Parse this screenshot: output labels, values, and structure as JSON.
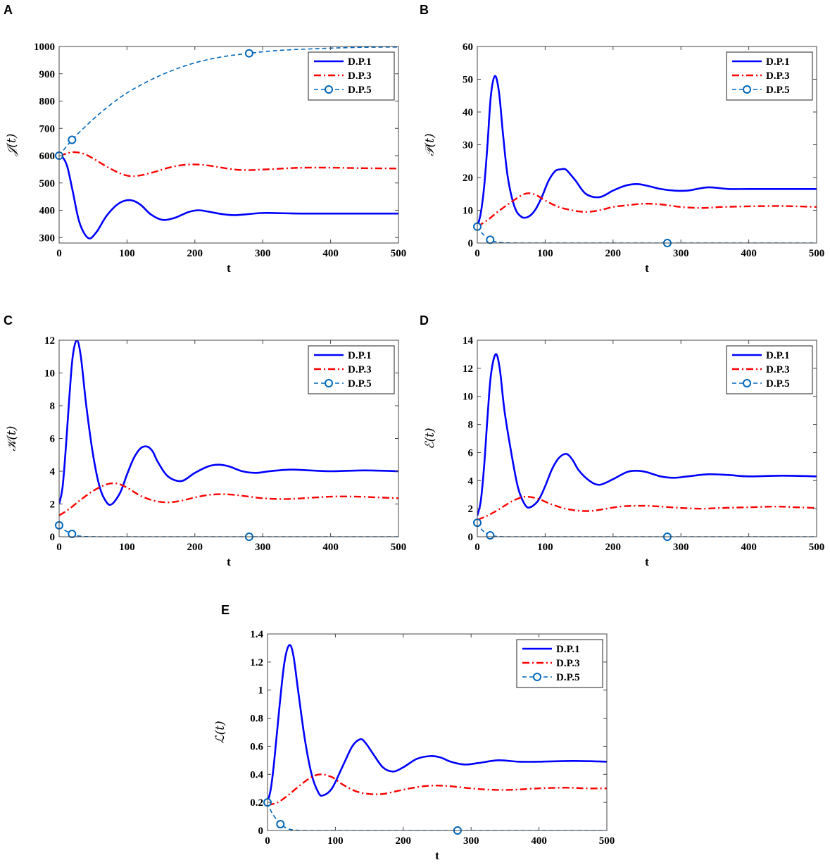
{
  "chart_data": [
    {
      "panel": "A",
      "type": "line",
      "xlabel": "t",
      "ylabel": "𝒥(t)",
      "xlim": [
        0,
        500
      ],
      "ylim": [
        280,
        1000
      ],
      "xticks": [
        0,
        100,
        200,
        300,
        400,
        500
      ],
      "yticks": [
        300,
        400,
        500,
        600,
        700,
        800,
        900,
        1000
      ],
      "legend_position": "top-right",
      "series": [
        {
          "name": "D.P.1",
          "color": "#0000ff",
          "style": "solid",
          "x": [
            0,
            5,
            12,
            20,
            30,
            43,
            55,
            70,
            88,
            105,
            120,
            135,
            152,
            170,
            190,
            205,
            220,
            240,
            258,
            275,
            300,
            330,
            360,
            400,
            450,
            500
          ],
          "y": [
            600,
            595,
            560,
            470,
            355,
            298,
            320,
            380,
            425,
            437,
            420,
            385,
            365,
            372,
            393,
            400,
            395,
            386,
            382,
            385,
            390,
            389,
            388,
            388,
            388,
            388
          ]
        },
        {
          "name": "D.P.3",
          "color": "#ff0000",
          "style": "dashdot",
          "x": [
            0,
            10,
            20,
            35,
            50,
            70,
            90,
            105,
            120,
            140,
            160,
            180,
            200,
            220,
            240,
            260,
            280,
            300,
            330,
            360,
            400,
            450,
            500
          ],
          "y": [
            600,
            607,
            613,
            608,
            590,
            560,
            535,
            525,
            528,
            540,
            555,
            565,
            568,
            564,
            556,
            549,
            547,
            549,
            553,
            556,
            556,
            554,
            553
          ]
        },
        {
          "name": "D.P.5",
          "color": "#0066bb",
          "style": "dashed",
          "marker": "circle",
          "marker_x": [
            0,
            19,
            280
          ],
          "x": [
            0,
            19,
            40,
            60,
            80,
            100,
            125,
            150,
            175,
            200,
            225,
            250,
            280,
            310,
            340,
            370,
            400,
            450,
            500
          ],
          "y": [
            600,
            658,
            710,
            755,
            795,
            830,
            865,
            895,
            920,
            940,
            955,
            966,
            975,
            983,
            988,
            991,
            994,
            997,
            998
          ]
        }
      ]
    },
    {
      "panel": "B",
      "type": "line",
      "xlabel": "t",
      "ylabel": "𝒫(t)",
      "xlim": [
        0,
        500
      ],
      "ylim": [
        0,
        60
      ],
      "xticks": [
        0,
        100,
        200,
        300,
        400,
        500
      ],
      "yticks": [
        0,
        10,
        20,
        30,
        40,
        50,
        60
      ],
      "legend_position": "top-right",
      "series": [
        {
          "name": "D.P.1",
          "color": "#0000ff",
          "style": "solid",
          "x": [
            0,
            5,
            10,
            15,
            20,
            26,
            32,
            38,
            45,
            55,
            65,
            75,
            85,
            95,
            105,
            115,
            123,
            130,
            137,
            145,
            160,
            180,
            200,
            218,
            235,
            250,
            270,
            290,
            310,
            340,
            370,
            400,
            450,
            500
          ],
          "y": [
            5,
            9,
            17,
            30,
            45,
            51,
            46,
            33,
            20,
            11,
            8,
            8,
            10,
            14,
            19,
            22,
            22.5,
            22.5,
            21,
            19,
            15,
            14,
            16,
            17.5,
            18,
            17.5,
            16.5,
            16,
            16,
            17,
            16.5,
            16.5,
            16.5,
            16.5
          ]
        },
        {
          "name": "D.P.3",
          "color": "#ff0000",
          "style": "dashdot",
          "x": [
            0,
            15,
            30,
            50,
            70,
            85,
            100,
            120,
            140,
            160,
            180,
            200,
            220,
            245,
            270,
            300,
            330,
            360,
            400,
            440,
            470,
            500
          ],
          "y": [
            5,
            7,
            9.5,
            12.5,
            15,
            14.8,
            13,
            11,
            10,
            9.5,
            10,
            11,
            11.5,
            12,
            11.8,
            11,
            10.7,
            11,
            11.2,
            11.3,
            11.2,
            11
          ]
        },
        {
          "name": "D.P.5",
          "color": "#0066bb",
          "style": "dashed",
          "marker": "circle",
          "marker_x": [
            0,
            19,
            280
          ],
          "x": [
            0,
            5,
            10,
            15,
            19,
            25,
            30,
            40,
            60,
            100,
            200,
            280,
            350,
            500
          ],
          "y": [
            5,
            3.5,
            2.4,
            1.6,
            1.0,
            0.5,
            0.25,
            0.08,
            0,
            0,
            0,
            0,
            0,
            0
          ]
        }
      ]
    },
    {
      "panel": "C",
      "type": "line",
      "xlabel": "t",
      "ylabel": "𝒦(t)",
      "xlim": [
        0,
        500
      ],
      "ylim": [
        0,
        12
      ],
      "xticks": [
        0,
        100,
        200,
        300,
        400,
        500
      ],
      "yticks": [
        0,
        2,
        4,
        6,
        8,
        10,
        12
      ],
      "legend_position": "top-right",
      "series": [
        {
          "name": "D.P.1",
          "color": "#0000ff",
          "style": "solid",
          "x": [
            0,
            5,
            10,
            15,
            20,
            26,
            32,
            40,
            50,
            60,
            70,
            78,
            90,
            100,
            110,
            120,
            130,
            138,
            145,
            160,
            180,
            200,
            220,
            235,
            250,
            270,
            290,
            310,
            340,
            370,
            400,
            450,
            500
          ],
          "y": [
            2,
            3,
            5.5,
            8.5,
            11,
            12,
            11,
            8,
            5,
            3,
            2.1,
            2,
            2.7,
            3.8,
            4.8,
            5.4,
            5.5,
            5.2,
            4.6,
            3.7,
            3.4,
            3.9,
            4.3,
            4.4,
            4.3,
            4.0,
            3.9,
            4.0,
            4.1,
            4.05,
            4.0,
            4.05,
            4.0
          ]
        },
        {
          "name": "D.P.3",
          "color": "#ff0000",
          "style": "dashdot",
          "x": [
            0,
            15,
            30,
            50,
            70,
            85,
            100,
            120,
            140,
            160,
            180,
            200,
            220,
            240,
            260,
            280,
            300,
            330,
            360,
            400,
            440,
            470,
            500
          ],
          "y": [
            1.3,
            1.7,
            2.2,
            2.8,
            3.2,
            3.25,
            3.0,
            2.5,
            2.2,
            2.1,
            2.2,
            2.4,
            2.55,
            2.6,
            2.55,
            2.45,
            2.35,
            2.3,
            2.35,
            2.45,
            2.45,
            2.4,
            2.35
          ]
        },
        {
          "name": "D.P.5",
          "color": "#0066bb",
          "style": "dashed",
          "marker": "circle",
          "marker_x": [
            0,
            19,
            280
          ],
          "x": [
            0,
            5,
            10,
            15,
            20,
            25,
            30,
            40,
            60,
            100,
            200,
            280,
            350,
            500
          ],
          "y": [
            0.7,
            0.5,
            0.35,
            0.25,
            0.15,
            0.08,
            0.04,
            0.01,
            0,
            0,
            0,
            0,
            0,
            0
          ]
        }
      ]
    },
    {
      "panel": "D",
      "type": "line",
      "xlabel": "t",
      "ylabel": "ℰ(t)",
      "xlim": [
        0,
        500
      ],
      "ylim": [
        0,
        14
      ],
      "xticks": [
        0,
        100,
        200,
        300,
        400,
        500
      ],
      "yticks": [
        0,
        2,
        4,
        6,
        8,
        10,
        12,
        14
      ],
      "legend_position": "top-right",
      "series": [
        {
          "name": "D.P.1",
          "color": "#0000ff",
          "style": "solid",
          "x": [
            0,
            5,
            10,
            15,
            20,
            27,
            33,
            40,
            50,
            60,
            70,
            78,
            90,
            100,
            110,
            120,
            131,
            140,
            150,
            165,
            180,
            200,
            220,
            235,
            250,
            270,
            290,
            310,
            340,
            370,
            400,
            450,
            500
          ],
          "y": [
            1.5,
            2.5,
            5,
            8.5,
            11.5,
            13,
            12,
            9,
            6,
            3.5,
            2.3,
            2.1,
            2.6,
            3.6,
            4.8,
            5.6,
            5.9,
            5.5,
            4.7,
            4.0,
            3.7,
            4.1,
            4.6,
            4.7,
            4.6,
            4.3,
            4.2,
            4.3,
            4.45,
            4.4,
            4.3,
            4.35,
            4.3
          ]
        },
        {
          "name": "D.P.3",
          "color": "#ff0000",
          "style": "dashdot",
          "x": [
            0,
            15,
            30,
            50,
            65,
            75,
            90,
            110,
            130,
            150,
            170,
            190,
            210,
            230,
            250,
            270,
            300,
            330,
            360,
            400,
            440,
            470,
            500
          ],
          "y": [
            1.2,
            1.5,
            1.9,
            2.5,
            2.8,
            2.85,
            2.7,
            2.3,
            2.0,
            1.85,
            1.85,
            2.0,
            2.15,
            2.2,
            2.2,
            2.15,
            2.05,
            2.0,
            2.05,
            2.1,
            2.15,
            2.1,
            2.05
          ]
        },
        {
          "name": "D.P.5",
          "color": "#0066bb",
          "style": "dashed",
          "marker": "circle",
          "marker_x": [
            0,
            19,
            280
          ],
          "x": [
            0,
            5,
            10,
            15,
            19,
            25,
            30,
            40,
            60,
            100,
            200,
            280,
            350,
            500
          ],
          "y": [
            1,
            0.6,
            0.35,
            0.2,
            0.1,
            0.05,
            0.02,
            0,
            0,
            0,
            0,
            0,
            0,
            0
          ]
        }
      ]
    },
    {
      "panel": "E",
      "type": "line",
      "xlabel": "t",
      "ylabel": "ℒ(t)",
      "xlim": [
        0,
        500
      ],
      "ylim": [
        0,
        1.4
      ],
      "xticks": [
        0,
        100,
        200,
        300,
        400,
        500
      ],
      "yticks": [
        0,
        0.2,
        0.4,
        0.6,
        0.8,
        1,
        1.2,
        1.4
      ],
      "legend_position": "top-right",
      "series": [
        {
          "name": "D.P.1",
          "color": "#0000ff",
          "style": "solid",
          "x": [
            0,
            5,
            10,
            18,
            25,
            32,
            38,
            45,
            55,
            65,
            75,
            82,
            95,
            110,
            125,
            137,
            145,
            155,
            170,
            185,
            200,
            220,
            240,
            255,
            270,
            290,
            310,
            340,
            370,
            400,
            450,
            500
          ],
          "y": [
            0.2,
            0.3,
            0.5,
            0.9,
            1.2,
            1.32,
            1.25,
            1.0,
            0.65,
            0.4,
            0.27,
            0.25,
            0.3,
            0.45,
            0.6,
            0.65,
            0.62,
            0.55,
            0.45,
            0.42,
            0.45,
            0.51,
            0.53,
            0.52,
            0.49,
            0.47,
            0.48,
            0.5,
            0.49,
            0.49,
            0.495,
            0.49
          ]
        },
        {
          "name": "D.P.3",
          "color": "#ff0000",
          "style": "dashdot",
          "x": [
            0,
            15,
            30,
            50,
            65,
            78,
            95,
            110,
            130,
            150,
            170,
            190,
            210,
            230,
            250,
            270,
            300,
            330,
            360,
            400,
            440,
            470,
            500
          ],
          "y": [
            0.18,
            0.2,
            0.25,
            0.33,
            0.38,
            0.4,
            0.38,
            0.33,
            0.28,
            0.26,
            0.26,
            0.28,
            0.3,
            0.315,
            0.32,
            0.315,
            0.3,
            0.29,
            0.29,
            0.3,
            0.305,
            0.3,
            0.3
          ]
        },
        {
          "name": "D.P.5",
          "color": "#0066bb",
          "style": "dashed",
          "marker": "circle",
          "marker_x": [
            0,
            19,
            280
          ],
          "x": [
            0,
            5,
            10,
            15,
            19,
            25,
            30,
            40,
            60,
            100,
            200,
            280,
            350,
            500
          ],
          "y": [
            0.2,
            0.14,
            0.1,
            0.07,
            0.045,
            0.025,
            0.012,
            0.003,
            0,
            0,
            0,
            0,
            0,
            0
          ]
        }
      ]
    }
  ]
}
